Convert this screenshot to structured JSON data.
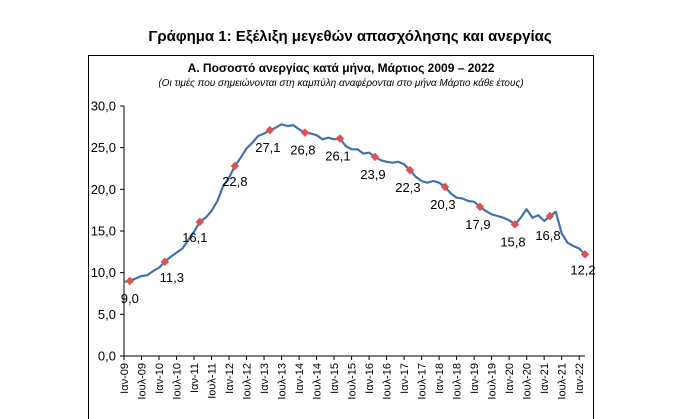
{
  "header": {
    "main_title": "Γράφημα 1: Εξέλιξη μεγεθών απασχόλησης και ανεργίας"
  },
  "chart_data": {
    "type": "line",
    "title": "Α. Ποσοστό ανεργίας κατά μήνα, Μάρτιος 2009 – 2022",
    "subtitle": "(Οι τιμές που σημειώνονται στη καμπύλη αναφέρονται στο μήνα Μάρτιο κάθε έτους)",
    "xlabel": "",
    "ylabel": "",
    "ylim": [
      0,
      30
    ],
    "yticks": [
      "0,0",
      "5,0",
      "10,0",
      "15,0",
      "20,0",
      "25,0",
      "30,0"
    ],
    "x_tick_labels": [
      "Ιαν-09",
      "Ιουλ-09",
      "Ιαν-10",
      "Ιουλ-10",
      "Ιαν-11",
      "Ιουλ-11",
      "Ιαν-12",
      "Ιουλ-12",
      "Ιαν-13",
      "Ιουλ-13",
      "Ιαν-14",
      "Ιουλ-14",
      "Ιαν-15",
      "Ιουλ-15",
      "Ιαν-16",
      "Ιουλ-16",
      "Ιαν-17",
      "Ιουλ-17",
      "Ιαν-18",
      "Ιουλ-18",
      "Ιαν-19",
      "Ιουλ-19",
      "Ιαν-20",
      "Ιουλ-20",
      "Ιαν-21",
      "Ιουλ-21",
      "Ιαν-22"
    ],
    "line_color": "#3f72af",
    "marker_color": "#e05050",
    "series_monthly": [
      {
        "x": "2009-01",
        "y": 8.9
      },
      {
        "x": "2009-03",
        "y": 9.0
      },
      {
        "x": "2009-05",
        "y": 9.3
      },
      {
        "x": "2009-07",
        "y": 9.6
      },
      {
        "x": "2009-09",
        "y": 9.7
      },
      {
        "x": "2009-11",
        "y": 10.2
      },
      {
        "x": "2010-01",
        "y": 10.6
      },
      {
        "x": "2010-03",
        "y": 11.3
      },
      {
        "x": "2010-05",
        "y": 11.9
      },
      {
        "x": "2010-07",
        "y": 12.4
      },
      {
        "x": "2010-09",
        "y": 12.9
      },
      {
        "x": "2010-11",
        "y": 13.9
      },
      {
        "x": "2011-01",
        "y": 14.9
      },
      {
        "x": "2011-03",
        "y": 16.1
      },
      {
        "x": "2011-05",
        "y": 16.6
      },
      {
        "x": "2011-07",
        "y": 17.4
      },
      {
        "x": "2011-09",
        "y": 18.6
      },
      {
        "x": "2011-11",
        "y": 20.4
      },
      {
        "x": "2012-01",
        "y": 21.4
      },
      {
        "x": "2012-03",
        "y": 22.8
      },
      {
        "x": "2012-05",
        "y": 23.8
      },
      {
        "x": "2012-07",
        "y": 24.9
      },
      {
        "x": "2012-09",
        "y": 25.6
      },
      {
        "x": "2012-11",
        "y": 26.4
      },
      {
        "x": "2013-01",
        "y": 26.7
      },
      {
        "x": "2013-03",
        "y": 27.1
      },
      {
        "x": "2013-05",
        "y": 27.4
      },
      {
        "x": "2013-07",
        "y": 27.8
      },
      {
        "x": "2013-09",
        "y": 27.6
      },
      {
        "x": "2013-11",
        "y": 27.7
      },
      {
        "x": "2014-01",
        "y": 27.2
      },
      {
        "x": "2014-03",
        "y": 26.8
      },
      {
        "x": "2014-05",
        "y": 26.7
      },
      {
        "x": "2014-07",
        "y": 26.5
      },
      {
        "x": "2014-09",
        "y": 26.0
      },
      {
        "x": "2014-11",
        "y": 26.2
      },
      {
        "x": "2015-01",
        "y": 26.0
      },
      {
        "x": "2015-03",
        "y": 26.1
      },
      {
        "x": "2015-05",
        "y": 25.2
      },
      {
        "x": "2015-07",
        "y": 24.8
      },
      {
        "x": "2015-09",
        "y": 24.8
      },
      {
        "x": "2015-11",
        "y": 24.3
      },
      {
        "x": "2016-01",
        "y": 24.4
      },
      {
        "x": "2016-03",
        "y": 23.9
      },
      {
        "x": "2016-05",
        "y": 23.5
      },
      {
        "x": "2016-07",
        "y": 23.3
      },
      {
        "x": "2016-09",
        "y": 23.2
      },
      {
        "x": "2016-11",
        "y": 23.3
      },
      {
        "x": "2017-01",
        "y": 23.0
      },
      {
        "x": "2017-03",
        "y": 22.3
      },
      {
        "x": "2017-05",
        "y": 21.5
      },
      {
        "x": "2017-07",
        "y": 21.0
      },
      {
        "x": "2017-09",
        "y": 20.8
      },
      {
        "x": "2017-11",
        "y": 21.0
      },
      {
        "x": "2018-01",
        "y": 20.8
      },
      {
        "x": "2018-03",
        "y": 20.3
      },
      {
        "x": "2018-05",
        "y": 19.5
      },
      {
        "x": "2018-07",
        "y": 19.0
      },
      {
        "x": "2018-09",
        "y": 18.9
      },
      {
        "x": "2018-11",
        "y": 18.6
      },
      {
        "x": "2019-01",
        "y": 18.5
      },
      {
        "x": "2019-03",
        "y": 17.9
      },
      {
        "x": "2019-05",
        "y": 17.4
      },
      {
        "x": "2019-07",
        "y": 17.0
      },
      {
        "x": "2019-09",
        "y": 16.8
      },
      {
        "x": "2019-11",
        "y": 16.6
      },
      {
        "x": "2020-01",
        "y": 16.3
      },
      {
        "x": "2020-03",
        "y": 15.8
      },
      {
        "x": "2020-05",
        "y": 16.6
      },
      {
        "x": "2020-07",
        "y": 17.6
      },
      {
        "x": "2020-09",
        "y": 16.6
      },
      {
        "x": "2020-11",
        "y": 16.9
      },
      {
        "x": "2021-01",
        "y": 16.2
      },
      {
        "x": "2021-03",
        "y": 16.8
      },
      {
        "x": "2021-05",
        "y": 17.3
      },
      {
        "x": "2021-07",
        "y": 14.7
      },
      {
        "x": "2021-09",
        "y": 13.6
      },
      {
        "x": "2021-11",
        "y": 13.2
      },
      {
        "x": "2022-01",
        "y": 12.9
      },
      {
        "x": "2022-03",
        "y": 12.2
      }
    ],
    "march_markers": [
      {
        "x": "2009-03",
        "y": 9.0,
        "label": "9,0"
      },
      {
        "x": "2010-03",
        "y": 11.3,
        "label": "11,3"
      },
      {
        "x": "2011-03",
        "y": 16.1,
        "label": "16,1"
      },
      {
        "x": "2012-03",
        "y": 22.8,
        "label": "22,8"
      },
      {
        "x": "2013-03",
        "y": 27.1,
        "label": "27,1"
      },
      {
        "x": "2014-03",
        "y": 26.8,
        "label": "26,8"
      },
      {
        "x": "2015-03",
        "y": 26.1,
        "label": "26,1"
      },
      {
        "x": "2016-03",
        "y": 23.9,
        "label": "23,9"
      },
      {
        "x": "2017-03",
        "y": 22.3,
        "label": "22,3"
      },
      {
        "x": "2018-03",
        "y": 20.3,
        "label": "20,3"
      },
      {
        "x": "2019-03",
        "y": 17.9,
        "label": "17,9"
      },
      {
        "x": "2020-03",
        "y": 15.8,
        "label": "15,8"
      },
      {
        "x": "2021-03",
        "y": 16.8,
        "label": "16,8"
      },
      {
        "x": "2022-03",
        "y": 12.2,
        "label": "12,2"
      }
    ],
    "grid": false,
    "legend": "none"
  }
}
